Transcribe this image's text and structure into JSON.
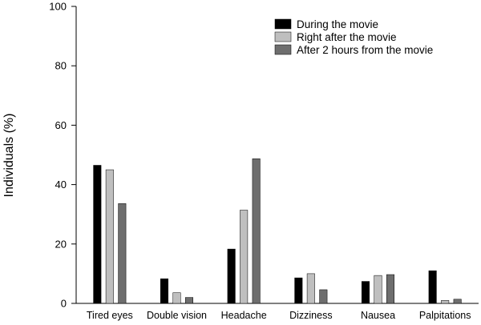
{
  "chart_data": {
    "type": "bar",
    "title": "",
    "xlabel": "",
    "ylabel": "Individuals (%)",
    "ylim": [
      0,
      100
    ],
    "yticks": [
      0,
      20,
      40,
      60,
      80,
      100
    ],
    "grid": false,
    "legend_position": "top-right",
    "categories": [
      "Tired eyes",
      "Double vision",
      "Headache",
      "Dizziness",
      "Nausea",
      "Palpitations"
    ],
    "series": [
      {
        "name": "During the movie",
        "color": "#000000",
        "values": [
          46.5,
          8.3,
          18.3,
          8.6,
          7.4,
          11.0
        ]
      },
      {
        "name": "Right after the movie",
        "color": "#bfbfbf",
        "values": [
          45.0,
          3.6,
          31.4,
          10.0,
          9.4,
          1.0
        ]
      },
      {
        "name": "After 2 hours from the movie",
        "color": "#6e6e6e",
        "values": [
          33.6,
          2.0,
          48.7,
          4.6,
          9.7,
          1.4
        ]
      }
    ]
  }
}
